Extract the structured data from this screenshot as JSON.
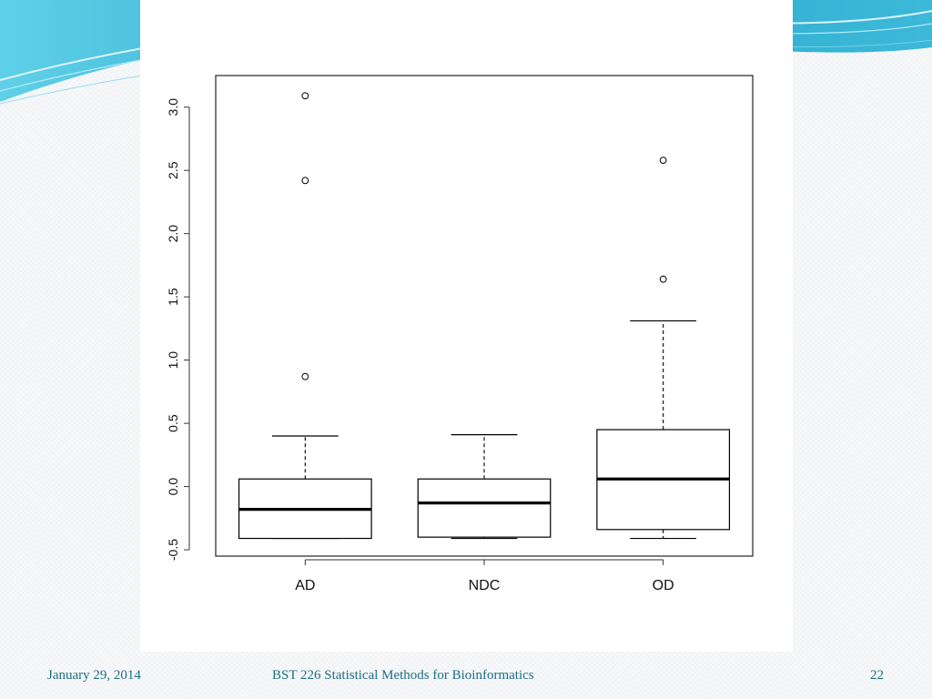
{
  "footer": {
    "date": "January 29, 2014",
    "course": "BST 226 Statistical Methods for Bioinformatics",
    "page_number": "22"
  },
  "theme": {
    "banner_dark": "#2aa6cc",
    "banner_light": "#9fe6f2",
    "footer_text": "#1f6f84"
  },
  "chart_data": {
    "type": "box",
    "title": "",
    "xlabel": "",
    "ylabel": "",
    "ylim": [
      -0.55,
      3.25
    ],
    "yticks": [
      -0.5,
      0.0,
      0.5,
      1.0,
      1.5,
      2.0,
      2.5,
      3.0
    ],
    "ytick_labels": [
      "-0.5",
      "0.0",
      "0.5",
      "1.0",
      "1.5",
      "2.0",
      "2.5",
      "3.0"
    ],
    "grid": false,
    "categories": [
      "AD",
      "NDC",
      "OD"
    ],
    "boxes": [
      {
        "category": "AD",
        "whisker_low": -0.41,
        "q1": -0.41,
        "median": -0.18,
        "q3": 0.06,
        "whisker_high": 0.4,
        "outliers": [
          0.87,
          2.42,
          3.09
        ]
      },
      {
        "category": "NDC",
        "whisker_low": -0.41,
        "q1": -0.4,
        "median": -0.13,
        "q3": 0.06,
        "whisker_high": 0.41,
        "outliers": []
      },
      {
        "category": "OD",
        "whisker_low": -0.41,
        "q1": -0.34,
        "median": 0.06,
        "q3": 0.45,
        "whisker_high": 1.31,
        "outliers": [
          1.64,
          2.58
        ]
      }
    ]
  }
}
